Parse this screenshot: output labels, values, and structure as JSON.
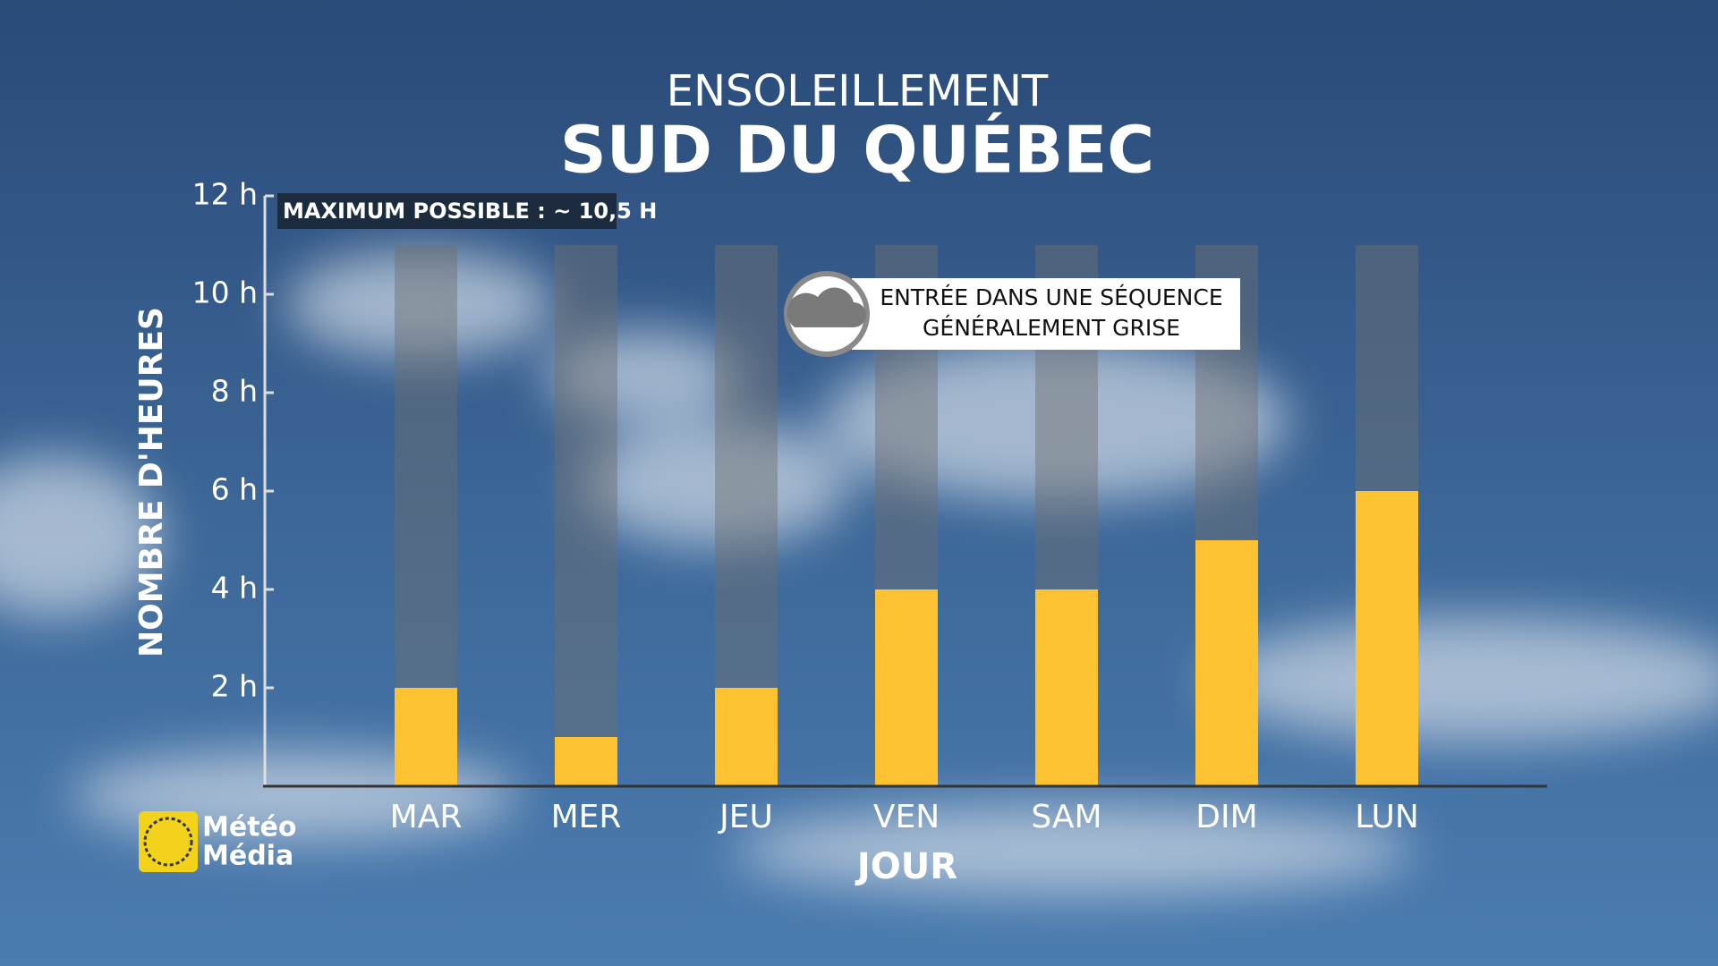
{
  "chart_data": {
    "type": "bar",
    "title": "ENSOLEILLEMENT",
    "subtitle": "SUD DU QUÉBEC",
    "y_label": "NOMBRE D'HEURES",
    "x_label": "JOUR",
    "note": "MAXIMUM POSSIBLE : ~ 10,5 H",
    "annotation": [
      "ENTRÉE DANS UNE SÉQUENCE",
      "GÉNÉRALEMENT GRISE"
    ],
    "categories": [
      "MAR",
      "MER",
      "JEU",
      "VEN",
      "SAM",
      "DIM",
      "LUN"
    ],
    "values": [
      2,
      1,
      2,
      4,
      4,
      5,
      6
    ],
    "color": "#fcc232",
    "ylim": [
      0,
      12
    ],
    "yticks": [
      {
        "value": 2,
        "label": "2 h"
      },
      {
        "value": 4,
        "label": "4 h"
      },
      {
        "value": 6,
        "label": "6 h"
      },
      {
        "value": 8,
        "label": "8 h"
      },
      {
        "value": 10,
        "label": "10 h"
      },
      {
        "value": 12,
        "label": "12 h"
      }
    ]
  },
  "logo": [
    "Météo",
    "Média"
  ]
}
